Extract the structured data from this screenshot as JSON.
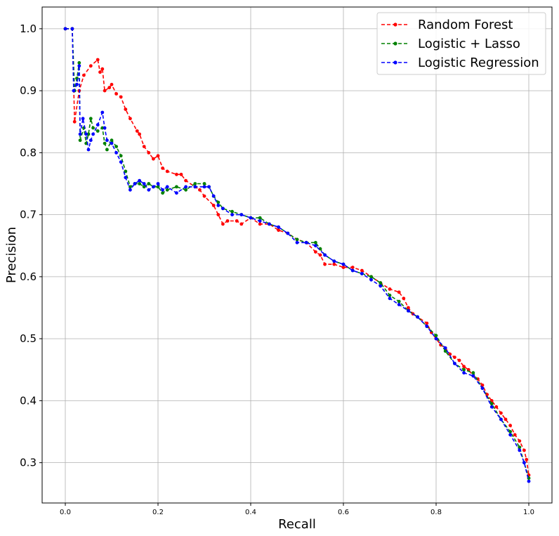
{
  "chart_data": {
    "type": "line",
    "xlabel": "Recall",
    "ylabel": "Precision",
    "xlim": [
      -0.05,
      1.05
    ],
    "ylim": [
      0.235,
      1.035
    ],
    "xticks": [
      0.0,
      0.2,
      0.4,
      0.6,
      0.8,
      1.0
    ],
    "xtick_labels": [
      "0.0",
      "0.2",
      "0.4",
      "0.6",
      "0.8",
      "1.0"
    ],
    "yticks": [
      0.3,
      0.4,
      0.5,
      0.6,
      0.7,
      0.8,
      0.9,
      1.0
    ],
    "ytick_labels": [
      "0.3",
      "0.4",
      "0.5",
      "0.6",
      "0.7",
      "0.8",
      "0.9",
      "1.0"
    ],
    "grid": true,
    "legend_position": "top-right",
    "series": [
      {
        "name": "Random Forest",
        "color": "#ff0000",
        "style": "dashed-dot",
        "points": [
          [
            0.0,
            1.0
          ],
          [
            0.015,
            1.0
          ],
          [
            0.02,
            0.85
          ],
          [
            0.03,
            0.9
          ],
          [
            0.04,
            0.925
          ],
          [
            0.055,
            0.94
          ],
          [
            0.07,
            0.95
          ],
          [
            0.075,
            0.93
          ],
          [
            0.08,
            0.935
          ],
          [
            0.085,
            0.9
          ],
          [
            0.095,
            0.905
          ],
          [
            0.1,
            0.91
          ],
          [
            0.11,
            0.895
          ],
          [
            0.12,
            0.89
          ],
          [
            0.13,
            0.87
          ],
          [
            0.14,
            0.855
          ],
          [
            0.155,
            0.835
          ],
          [
            0.16,
            0.83
          ],
          [
            0.17,
            0.81
          ],
          [
            0.18,
            0.8
          ],
          [
            0.19,
            0.79
          ],
          [
            0.2,
            0.795
          ],
          [
            0.21,
            0.775
          ],
          [
            0.22,
            0.77
          ],
          [
            0.24,
            0.765
          ],
          [
            0.25,
            0.765
          ],
          [
            0.26,
            0.755
          ],
          [
            0.28,
            0.745
          ],
          [
            0.29,
            0.74
          ],
          [
            0.3,
            0.73
          ],
          [
            0.32,
            0.715
          ],
          [
            0.33,
            0.7
          ],
          [
            0.34,
            0.685
          ],
          [
            0.35,
            0.69
          ],
          [
            0.37,
            0.69
          ],
          [
            0.38,
            0.685
          ],
          [
            0.4,
            0.695
          ],
          [
            0.42,
            0.685
          ],
          [
            0.44,
            0.685
          ],
          [
            0.46,
            0.675
          ],
          [
            0.48,
            0.67
          ],
          [
            0.5,
            0.66
          ],
          [
            0.52,
            0.655
          ],
          [
            0.54,
            0.64
          ],
          [
            0.55,
            0.635
          ],
          [
            0.56,
            0.62
          ],
          [
            0.58,
            0.62
          ],
          [
            0.6,
            0.615
          ],
          [
            0.62,
            0.615
          ],
          [
            0.64,
            0.61
          ],
          [
            0.66,
            0.6
          ],
          [
            0.68,
            0.59
          ],
          [
            0.7,
            0.58
          ],
          [
            0.72,
            0.575
          ],
          [
            0.73,
            0.565
          ],
          [
            0.74,
            0.55
          ],
          [
            0.75,
            0.54
          ],
          [
            0.76,
            0.535
          ],
          [
            0.78,
            0.525
          ],
          [
            0.79,
            0.51
          ],
          [
            0.8,
            0.5
          ],
          [
            0.81,
            0.49
          ],
          [
            0.82,
            0.485
          ],
          [
            0.83,
            0.475
          ],
          [
            0.84,
            0.47
          ],
          [
            0.85,
            0.465
          ],
          [
            0.86,
            0.455
          ],
          [
            0.87,
            0.45
          ],
          [
            0.88,
            0.44
          ],
          [
            0.89,
            0.435
          ],
          [
            0.9,
            0.425
          ],
          [
            0.91,
            0.41
          ],
          [
            0.92,
            0.4
          ],
          [
            0.93,
            0.39
          ],
          [
            0.94,
            0.38
          ],
          [
            0.95,
            0.37
          ],
          [
            0.96,
            0.36
          ],
          [
            0.97,
            0.345
          ],
          [
            0.98,
            0.335
          ],
          [
            0.99,
            0.32
          ],
          [
            0.995,
            0.305
          ],
          [
            1.0,
            0.28
          ]
        ]
      },
      {
        "name": "Logistic + Lasso",
        "color": "#008000",
        "style": "dashed-dot",
        "points": [
          [
            0.0,
            1.0
          ],
          [
            0.015,
            1.0
          ],
          [
            0.02,
            0.9
          ],
          [
            0.025,
            0.92
          ],
          [
            0.03,
            0.945
          ],
          [
            0.032,
            0.82
          ],
          [
            0.04,
            0.84
          ],
          [
            0.045,
            0.815
          ],
          [
            0.05,
            0.83
          ],
          [
            0.055,
            0.855
          ],
          [
            0.06,
            0.84
          ],
          [
            0.07,
            0.835
          ],
          [
            0.08,
            0.84
          ],
          [
            0.085,
            0.815
          ],
          [
            0.09,
            0.805
          ],
          [
            0.1,
            0.82
          ],
          [
            0.11,
            0.81
          ],
          [
            0.12,
            0.795
          ],
          [
            0.13,
            0.77
          ],
          [
            0.14,
            0.745
          ],
          [
            0.15,
            0.75
          ],
          [
            0.16,
            0.75
          ],
          [
            0.17,
            0.745
          ],
          [
            0.18,
            0.75
          ],
          [
            0.19,
            0.745
          ],
          [
            0.2,
            0.745
          ],
          [
            0.21,
            0.735
          ],
          [
            0.22,
            0.74
          ],
          [
            0.24,
            0.745
          ],
          [
            0.26,
            0.74
          ],
          [
            0.28,
            0.75
          ],
          [
            0.3,
            0.75
          ],
          [
            0.31,
            0.745
          ],
          [
            0.32,
            0.73
          ],
          [
            0.33,
            0.72
          ],
          [
            0.34,
            0.71
          ],
          [
            0.36,
            0.705
          ],
          [
            0.38,
            0.7
          ],
          [
            0.4,
            0.695
          ],
          [
            0.42,
            0.695
          ],
          [
            0.44,
            0.685
          ],
          [
            0.46,
            0.68
          ],
          [
            0.48,
            0.67
          ],
          [
            0.5,
            0.66
          ],
          [
            0.52,
            0.655
          ],
          [
            0.54,
            0.655
          ],
          [
            0.55,
            0.645
          ],
          [
            0.56,
            0.635
          ],
          [
            0.58,
            0.625
          ],
          [
            0.6,
            0.62
          ],
          [
            0.62,
            0.61
          ],
          [
            0.64,
            0.605
          ],
          [
            0.66,
            0.6
          ],
          [
            0.68,
            0.59
          ],
          [
            0.7,
            0.57
          ],
          [
            0.72,
            0.56
          ],
          [
            0.74,
            0.545
          ],
          [
            0.76,
            0.535
          ],
          [
            0.78,
            0.52
          ],
          [
            0.8,
            0.505
          ],
          [
            0.82,
            0.48
          ],
          [
            0.84,
            0.46
          ],
          [
            0.86,
            0.45
          ],
          [
            0.88,
            0.445
          ],
          [
            0.9,
            0.42
          ],
          [
            0.92,
            0.395
          ],
          [
            0.94,
            0.37
          ],
          [
            0.96,
            0.35
          ],
          [
            0.98,
            0.325
          ],
          [
            0.99,
            0.3
          ],
          [
            1.0,
            0.275
          ]
        ]
      },
      {
        "name": "Logistic Regression",
        "color": "#0000ff",
        "style": "dashed-dot",
        "points": [
          [
            0.0,
            1.0
          ],
          [
            0.015,
            1.0
          ],
          [
            0.018,
            0.9
          ],
          [
            0.025,
            0.91
          ],
          [
            0.03,
            0.94
          ],
          [
            0.032,
            0.83
          ],
          [
            0.038,
            0.855
          ],
          [
            0.045,
            0.83
          ],
          [
            0.05,
            0.805
          ],
          [
            0.055,
            0.82
          ],
          [
            0.06,
            0.83
          ],
          [
            0.07,
            0.845
          ],
          [
            0.08,
            0.865
          ],
          [
            0.085,
            0.84
          ],
          [
            0.09,
            0.82
          ],
          [
            0.1,
            0.815
          ],
          [
            0.11,
            0.8
          ],
          [
            0.12,
            0.785
          ],
          [
            0.13,
            0.76
          ],
          [
            0.14,
            0.74
          ],
          [
            0.15,
            0.75
          ],
          [
            0.16,
            0.755
          ],
          [
            0.17,
            0.75
          ],
          [
            0.18,
            0.74
          ],
          [
            0.19,
            0.745
          ],
          [
            0.2,
            0.75
          ],
          [
            0.21,
            0.74
          ],
          [
            0.22,
            0.745
          ],
          [
            0.24,
            0.735
          ],
          [
            0.26,
            0.745
          ],
          [
            0.28,
            0.745
          ],
          [
            0.3,
            0.745
          ],
          [
            0.31,
            0.745
          ],
          [
            0.32,
            0.73
          ],
          [
            0.33,
            0.715
          ],
          [
            0.34,
            0.71
          ],
          [
            0.36,
            0.7
          ],
          [
            0.38,
            0.7
          ],
          [
            0.4,
            0.695
          ],
          [
            0.42,
            0.69
          ],
          [
            0.44,
            0.685
          ],
          [
            0.46,
            0.68
          ],
          [
            0.48,
            0.67
          ],
          [
            0.5,
            0.655
          ],
          [
            0.52,
            0.655
          ],
          [
            0.54,
            0.65
          ],
          [
            0.56,
            0.635
          ],
          [
            0.58,
            0.625
          ],
          [
            0.6,
            0.62
          ],
          [
            0.62,
            0.61
          ],
          [
            0.64,
            0.605
          ],
          [
            0.66,
            0.595
          ],
          [
            0.68,
            0.585
          ],
          [
            0.7,
            0.565
          ],
          [
            0.72,
            0.555
          ],
          [
            0.74,
            0.545
          ],
          [
            0.76,
            0.535
          ],
          [
            0.78,
            0.52
          ],
          [
            0.8,
            0.5
          ],
          [
            0.82,
            0.485
          ],
          [
            0.84,
            0.46
          ],
          [
            0.86,
            0.445
          ],
          [
            0.88,
            0.44
          ],
          [
            0.9,
            0.42
          ],
          [
            0.92,
            0.39
          ],
          [
            0.94,
            0.37
          ],
          [
            0.96,
            0.345
          ],
          [
            0.98,
            0.32
          ],
          [
            0.99,
            0.3
          ],
          [
            1.0,
            0.27
          ]
        ]
      }
    ]
  }
}
